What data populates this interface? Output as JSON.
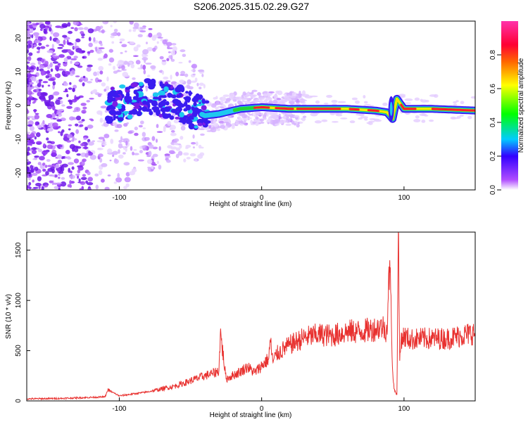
{
  "title": "S206.2025.315.02.29.G27",
  "colors": {
    "snr_line": "#e8312f",
    "ridge": "#e11d48",
    "noise": "#7a1ee6"
  },
  "chart_data": [
    {
      "type": "heatmap",
      "xlabel": "Height of straight line (km)",
      "ylabel": "Frequency (Hz)",
      "xlim": [
        -165,
        150
      ],
      "ylim": [
        -25,
        25
      ],
      "x_ticks": [
        -100,
        0,
        100
      ],
      "y_ticks": [
        -20,
        -10,
        0,
        10,
        20
      ],
      "colorbar": {
        "label": "Normalized spectral amplitude",
        "range": [
          0,
          1
        ],
        "ticks": [
          0.0,
          0.2,
          0.4,
          0.6,
          0.8
        ],
        "colors": [
          "#ffffff",
          "#b04dff",
          "#3300ff",
          "#00ccff",
          "#00ff00",
          "#ffff00",
          "#ff6600",
          "#ff0033",
          "#ff33aa"
        ]
      },
      "ridge": {
        "x": [
          -105,
          -80,
          -60,
          -40,
          -30,
          -15,
          0,
          20,
          60,
          80,
          88,
          92,
          95,
          100,
          120,
          150
        ],
        "y": [
          0,
          2.5,
          1,
          -3,
          -2.5,
          -1,
          -0.5,
          -1,
          -1,
          -1.5,
          -2,
          -4,
          2,
          -1,
          -1,
          -1.5
        ]
      }
    },
    {
      "type": "line",
      "xlabel": "Height of straight line (km)",
      "ylabel": "SNR (10 * v/v)",
      "xlim": [
        -165,
        150
      ],
      "ylim": [
        0,
        1680
      ],
      "x_ticks": [
        -100,
        0,
        100
      ],
      "y_ticks": [
        0,
        500,
        1000,
        1500
      ],
      "series": [
        {
          "x": [
            -165,
            -140,
            -110,
            -108,
            -100,
            -80,
            -60,
            -50,
            -40,
            -35,
            -30,
            -29,
            -25,
            -15,
            -10,
            -5,
            5,
            6,
            8,
            10,
            20,
            30,
            40,
            50,
            60,
            70,
            80,
            85,
            88,
            90,
            92,
            93,
            95,
            96,
            97,
            98,
            100,
            105,
            110,
            120,
            130,
            140,
            150
          ],
          "y": [
            20,
            25,
            40,
            110,
            50,
            90,
            150,
            200,
            250,
            270,
            300,
            680,
            220,
            290,
            340,
            280,
            420,
            610,
            380,
            460,
            560,
            630,
            660,
            650,
            690,
            690,
            720,
            740,
            700,
            1400,
            300,
            120,
            60,
            1680,
            400,
            630,
            640,
            610,
            620,
            620,
            620,
            650,
            680
          ]
        }
      ]
    }
  ]
}
